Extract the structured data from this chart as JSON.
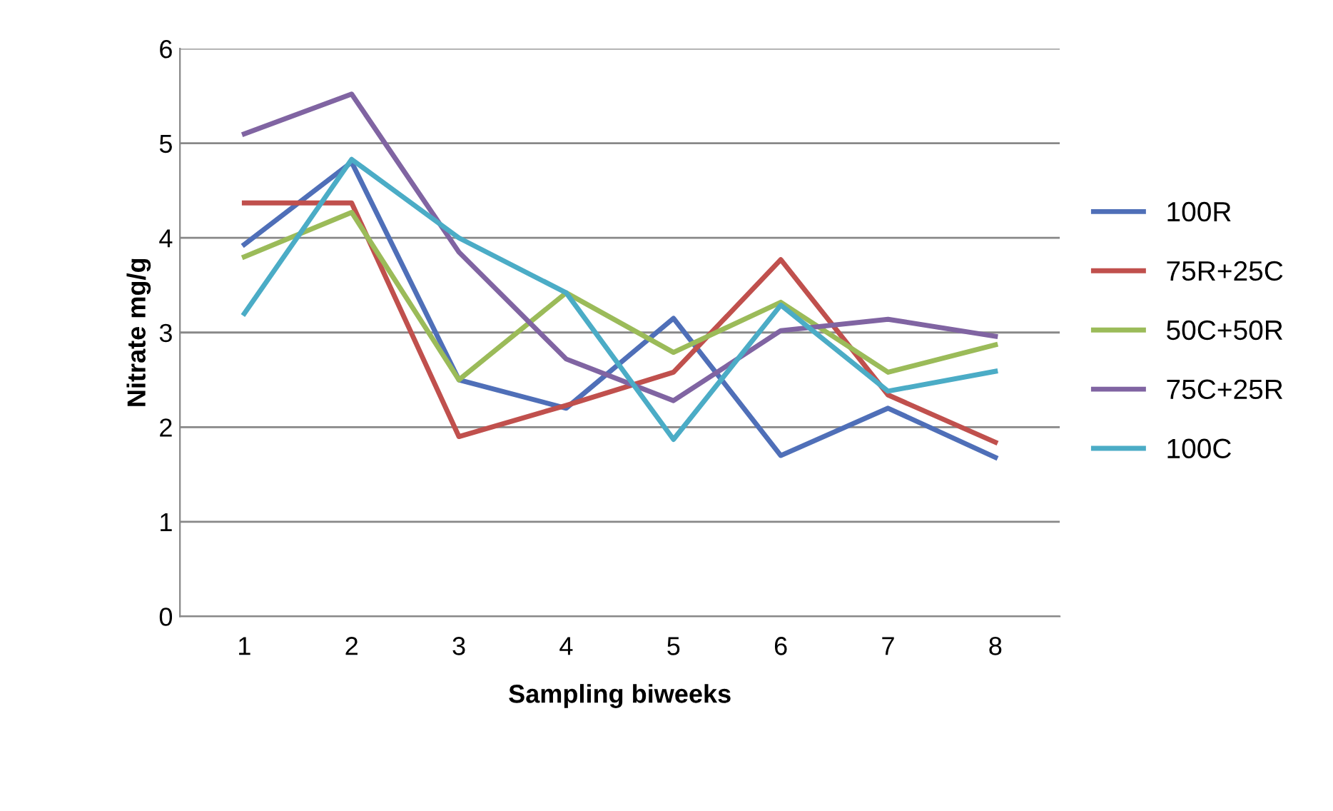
{
  "chart_data": {
    "type": "line",
    "xlabel": "Sampling biweeks",
    "ylabel": "Nitrate mg/g",
    "categories": [
      "1",
      "2",
      "3",
      "4",
      "5",
      "6",
      "7",
      "8"
    ],
    "series": [
      {
        "name": "100R",
        "color": "#4f6fb8",
        "values": [
          3.93,
          4.8,
          2.5,
          2.2,
          3.15,
          1.7,
          2.2,
          1.68
        ]
      },
      {
        "name": "75R+25C",
        "color": "#c0504d",
        "values": [
          4.37,
          4.37,
          1.9,
          2.23,
          2.58,
          3.77,
          2.34,
          1.84
        ]
      },
      {
        "name": "50C+50R",
        "color": "#9bbb59",
        "values": [
          3.8,
          4.27,
          2.5,
          3.42,
          2.79,
          3.32,
          2.58,
          2.87
        ]
      },
      {
        "name": "75C+25R",
        "color": "#8064a2",
        "values": [
          5.1,
          5.52,
          3.85,
          2.72,
          2.28,
          3.02,
          3.14,
          2.96
        ]
      },
      {
        "name": "100C",
        "color": "#4bacc6",
        "values": [
          3.2,
          4.83,
          4.0,
          3.42,
          1.87,
          3.29,
          2.38,
          2.59
        ]
      }
    ],
    "ylim": [
      0,
      6
    ],
    "yticks": [
      0,
      1,
      2,
      3,
      4,
      5,
      6
    ],
    "grid": "y",
    "legend": "right",
    "marker": "none",
    "line_style": "solid"
  }
}
